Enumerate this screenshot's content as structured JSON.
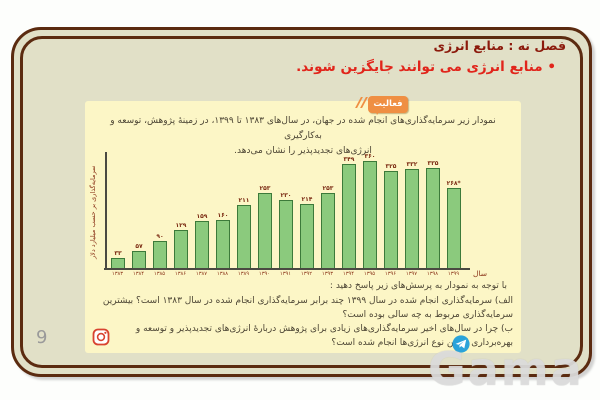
{
  "header": {
    "chapter_title": "فصل نه : منابع انرژی",
    "bullet_text": "• منابع انرژی می توانند جایگزین شوند."
  },
  "activity": {
    "badge_label": "فعالیت",
    "intro_line1": "نمودار زیر سرمایه‌گذاری‌های انجام شده در جهان، در سال‌های ۱۳۸۳ تا ۱۳۹۹، در زمینهٔ پژوهش، توسعه و به‌کارگیری",
    "intro_line2": "انرژی‌های تجدیدپذیر را نشان می‌دهد.",
    "prompt": "با توجه به نمودار به پرسش‌های زیر پاسخ دهید :",
    "question_a": "الف) سرمایه‌گذاری انجام شده در سال ۱۳۹۹ چند برابر سرمایه‌گذاری انجام شده در سال ۱۳۸۳ است؟ بیشترین سرمایه‌گذاری مربوط به چه سالی بوده است؟",
    "question_b": "ب) چرا در سال‌های اخیر سرمایه‌گذاری‌های زیادی برای پژوهش دربارهٔ انرژی‌های تجدیدپذیر و توسعه و بهره‌برداری از این نوع انرژی‌ها انجام شده است؟"
  },
  "chart_data": {
    "type": "bar",
    "title": "",
    "xlabel": "سال",
    "ylabel": "سرمایه‌گذاری بر حسب میلیارد دلار",
    "categories": [
      "۱۳۸۳",
      "۱۳۸۴",
      "۱۳۸۵",
      "۱۳۸۶",
      "۱۳۸۷",
      "۱۳۸۸",
      "۱۳۸۹",
      "۱۳۹۰",
      "۱۳۹۱",
      "۱۳۹۲",
      "۱۳۹۳",
      "۱۳۹۴",
      "۱۳۹۵",
      "۱۳۹۶",
      "۱۳۹۷",
      "۱۳۹۸",
      "۱۳۹۹"
    ],
    "values": [
      33,
      57,
      90,
      129,
      159,
      160,
      211,
      253,
      230,
      214,
      253,
      349,
      360,
      325,
      332,
      335,
      268
    ],
    "value_labels": [
      "۳۳",
      "۵۷",
      "۹۰",
      "۱۲۹",
      "۱۵۹",
      "۱۶۰",
      "۲۱۱",
      "۲۵۳",
      "۲۳۰",
      "۲۱۴",
      "۲۵۳",
      "۳۴۹",
      "۳۶۰",
      "۳۲۵",
      "۳۳۲",
      "۳۳۵",
      "۲۶۸*"
    ],
    "ylim": [
      0,
      380
    ],
    "grid": false,
    "legend": null,
    "bar_color": "#8bca7d",
    "bar_border_color": "#3c7a3a"
  },
  "footer": {
    "page_number": "9",
    "watermark": "Gama"
  },
  "colors": {
    "slide_background": "#e1e0c7",
    "frame_border": "#5b2b10",
    "panel_background": "#fcf6c6",
    "title_color": "#8c1a0c",
    "bullet_color": "#e1251b",
    "badge_orange": "#ef8f43",
    "telegram_blue": "#2ba3d9",
    "instagram_red": "#d84330"
  }
}
